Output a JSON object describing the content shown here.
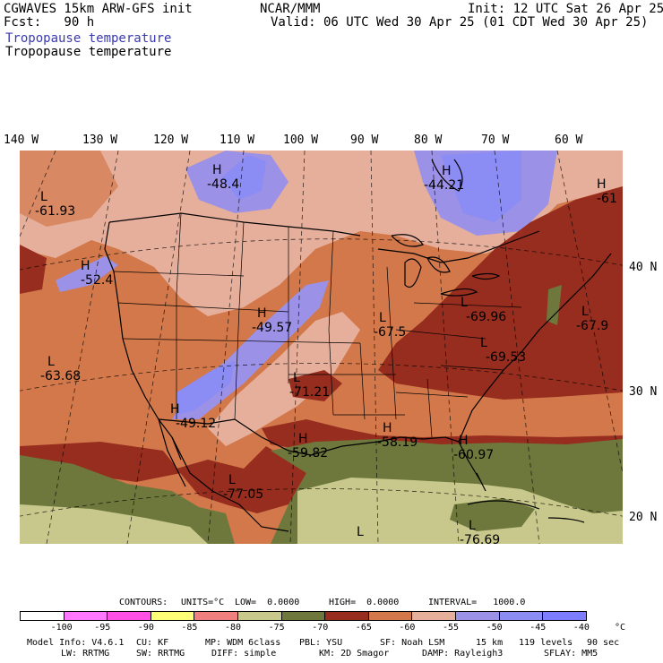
{
  "header": {
    "title_left": "CGWAVES 15km ARW-GFS init",
    "fcst": "Fcst:   90 h",
    "center": "NCAR/MMM",
    "init": "Init: 12 UTC Sat 26 Apr 25",
    "valid": "Valid: 06 UTC Wed 30 Apr 25 (01 CDT Wed 30 Apr 25)",
    "field_blue": "Tropopause temperature",
    "field_black": "Tropopause temperature"
  },
  "longitude_labels": [
    "140 W",
    "130 W",
    "120 W",
    "110 W",
    "100 W",
    "90 W",
    "80 W",
    "70 W",
    "60 W"
  ],
  "latitude_labels": [
    "40 N",
    "30 N",
    "20 N"
  ],
  "markers": [
    {
      "type": "H",
      "value": "-48.4"
    },
    {
      "type": "H",
      "value": "-44.21"
    },
    {
      "type": "H",
      "value": "-61"
    },
    {
      "type": "L",
      "value": "-61.93"
    },
    {
      "type": "H",
      "value": "-52.4"
    },
    {
      "type": "H",
      "value": "-49.57"
    },
    {
      "type": "L",
      "value": "-69.96"
    },
    {
      "type": "L",
      "value": "-67.5"
    },
    {
      "type": "L",
      "value": "-67.9"
    },
    {
      "type": "L",
      "value": "-69.53"
    },
    {
      "type": "L",
      "value": "-63.68"
    },
    {
      "type": "L",
      "value": "-71.21"
    },
    {
      "type": "H",
      "value": "-49.12"
    },
    {
      "type": "H",
      "value": "-59.82"
    },
    {
      "type": "H",
      "value": "-58.19"
    },
    {
      "type": "H",
      "value": "-60.97"
    },
    {
      "type": "L",
      "value": "-77.05"
    },
    {
      "type": "L",
      "value": ""
    },
    {
      "type": "L",
      "value": "-76.69"
    }
  ],
  "contours_line": {
    "contours": "CONTOURS:",
    "units": "UNITS=°C",
    "low": "LOW=  0.0000",
    "high": "HIGH=  0.0000",
    "interval": "INTERVAL=   1000.0"
  },
  "colorbar": {
    "colors": [
      "#ffffff",
      "#ff78ff",
      "#ff50e6",
      "#ffff78",
      "#f08080",
      "#c8c88c",
      "#6e783c",
      "#962d1e",
      "#d2784b",
      "#e6af9b",
      "#9b91e6",
      "#8c8cf5",
      "#7d7dff"
    ],
    "labels": [
      "-100",
      "-95",
      "-90",
      "-85",
      "-80",
      "-75",
      "-70",
      "-65",
      "-60",
      "-55",
      "-50",
      "-45",
      "-40"
    ],
    "unit": "°C"
  },
  "model_info": {
    "line1": [
      "Model Info: V4.6.1",
      "CU: KF",
      "MP: WDM 6class",
      "PBL: YSU",
      "SF: Noah LSM",
      "15 km",
      "119 levels",
      "90 sec"
    ],
    "line2": [
      "LW: RRTMG",
      "SW: RRTMG",
      "DIFF: simple",
      "KM: 2D Smagor",
      "DAMP: Rayleigh3",
      "SFLAY: MM5"
    ]
  }
}
